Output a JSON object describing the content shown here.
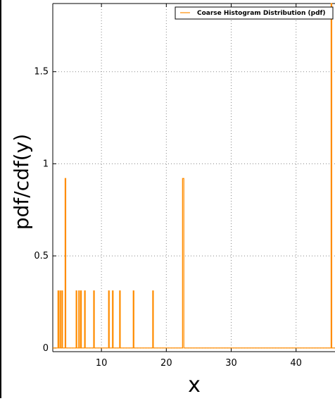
{
  "chart_data": {
    "type": "line",
    "title": "",
    "xlabel": "x",
    "ylabel": "pdf/cdf(y)",
    "xlim": [
      2.5,
      46
    ],
    "ylim": [
      -0.02,
      1.87
    ],
    "xticks": [
      10,
      20,
      30,
      40
    ],
    "yticks": [
      0,
      0.5,
      1,
      1.5
    ],
    "ytick_labels": [
      "0",
      "0.5",
      "1",
      "1.5"
    ],
    "grid": true,
    "legend_position": "top-right",
    "series": [
      {
        "name": "Coarse Histogram Distribution (pdf)",
        "color": "#ff8c00",
        "spikes": [
          {
            "x0": 3.3,
            "x1": 3.4,
            "y": 0.31
          },
          {
            "x0": 3.6,
            "x1": 3.7,
            "y": 0.31
          },
          {
            "x0": 3.9,
            "x1": 4.0,
            "y": 0.31
          },
          {
            "x0": 4.4,
            "x1": 4.5,
            "y": 0.92
          },
          {
            "x0": 6.1,
            "x1": 6.2,
            "y": 0.31
          },
          {
            "x0": 6.5,
            "x1": 6.6,
            "y": 0.31
          },
          {
            "x0": 6.8,
            "x1": 6.9,
            "y": 0.31
          },
          {
            "x0": 7.4,
            "x1": 7.5,
            "y": 0.31
          },
          {
            "x0": 8.8,
            "x1": 8.9,
            "y": 0.31
          },
          {
            "x0": 11.1,
            "x1": 11.2,
            "y": 0.31
          },
          {
            "x0": 11.7,
            "x1": 11.8,
            "y": 0.31
          },
          {
            "x0": 12.8,
            "x1": 12.9,
            "y": 0.31
          },
          {
            "x0": 14.9,
            "x1": 15.0,
            "y": 0.31
          },
          {
            "x0": 17.9,
            "x1": 18.0,
            "y": 0.31
          },
          {
            "x0": 22.5,
            "x1": 22.7,
            "y": 0.92
          },
          {
            "x0": 45.4,
            "x1": 45.5,
            "y": 1.87
          }
        ]
      }
    ]
  }
}
